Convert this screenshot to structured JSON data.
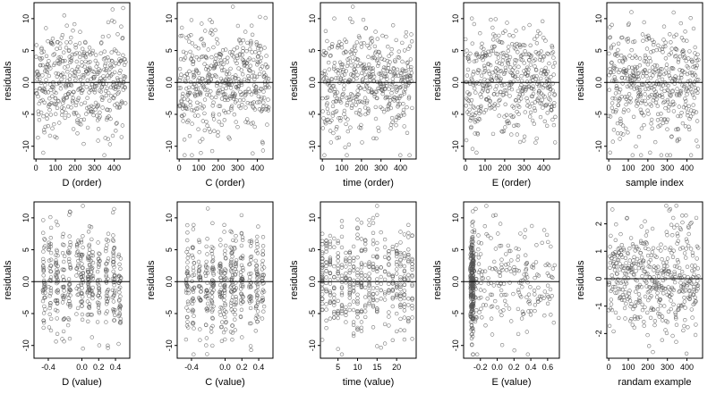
{
  "chart_data": [
    {
      "type": "scatter",
      "xlabel": "D (order)",
      "ylabel": "residuals",
      "xlim": [
        -10,
        480
      ],
      "ylim": [
        -12,
        12.5
      ],
      "xticks": [
        0,
        100,
        200,
        300,
        400
      ],
      "xtick_labels": [
        "0",
        "100",
        "200",
        "300",
        "400"
      ],
      "yticks": [
        -10,
        -5,
        0,
        5,
        10
      ],
      "ytick_labels": [
        "-10",
        "-5",
        "0.0",
        "5",
        "10"
      ],
      "reference_line": 0,
      "x_kind": "order",
      "n_points": 460
    },
    {
      "type": "scatter",
      "xlabel": "C (order)",
      "ylabel": "residuals",
      "xlim": [
        -10,
        480
      ],
      "ylim": [
        -12,
        12.5
      ],
      "xticks": [
        0,
        100,
        200,
        300,
        400
      ],
      "xtick_labels": [
        "0",
        "100",
        "200",
        "300",
        "400"
      ],
      "yticks": [
        -10,
        -5,
        0,
        5,
        10
      ],
      "ytick_labels": [
        "-10",
        "-5",
        "0.0",
        "5",
        "10"
      ],
      "reference_line": 0,
      "x_kind": "order",
      "n_points": 460
    },
    {
      "type": "scatter",
      "xlabel": "time (order)",
      "ylabel": "residuals",
      "xlim": [
        -10,
        480
      ],
      "ylim": [
        -12,
        12.5
      ],
      "xticks": [
        0,
        100,
        200,
        300,
        400
      ],
      "xtick_labels": [
        "0",
        "100",
        "200",
        "300",
        "400"
      ],
      "yticks": [
        -10,
        -5,
        0,
        5,
        10
      ],
      "ytick_labels": [
        "-10",
        "-5",
        "0.0",
        "5",
        "10"
      ],
      "reference_line": 0,
      "x_kind": "order",
      "n_points": 460
    },
    {
      "type": "scatter",
      "xlabel": "E (order)",
      "ylabel": "residuals",
      "xlim": [
        -10,
        480
      ],
      "ylim": [
        -12,
        12.5
      ],
      "xticks": [
        0,
        100,
        200,
        300,
        400
      ],
      "xtick_labels": [
        "0",
        "100",
        "200",
        "300",
        "400"
      ],
      "yticks": [
        -10,
        -5,
        0,
        5,
        10
      ],
      "ytick_labels": [
        "-10",
        "-5",
        "0.0",
        "5",
        "10"
      ],
      "reference_line": 0,
      "x_kind": "order",
      "n_points": 460
    },
    {
      "type": "scatter",
      "xlabel": "sample index",
      "ylabel": "residuals",
      "xlim": [
        -10,
        480
      ],
      "ylim": [
        -12,
        12.5
      ],
      "xticks": [
        0,
        100,
        200,
        300,
        400
      ],
      "xtick_labels": [
        "0",
        "100",
        "200",
        "300",
        "400"
      ],
      "yticks": [
        -10,
        -5,
        0,
        5,
        10
      ],
      "ytick_labels": [
        "-10",
        "-5",
        "0.0",
        "5",
        "10"
      ],
      "reference_line": 0,
      "x_kind": "order",
      "n_points": 460
    },
    {
      "type": "scatter",
      "xlabel": "D (value)",
      "ylabel": "residuals",
      "xlim": [
        -0.57,
        0.57
      ],
      "ylim": [
        -12,
        12.5
      ],
      "xticks": [
        -0.4,
        0.0,
        0.2,
        0.4
      ],
      "xtick_labels": [
        "-0.4",
        "0.0",
        "0.2",
        "0.4"
      ],
      "yticks": [
        -10,
        -5,
        0,
        5,
        10
      ],
      "ytick_labels": [
        "-10",
        "-5",
        "0.0",
        "5",
        "10"
      ],
      "reference_line": 0,
      "x_kind": "value_clustered",
      "x_range": [
        -0.5,
        0.5
      ],
      "n_points": 460
    },
    {
      "type": "scatter",
      "xlabel": "C (value)",
      "ylabel": "residuals",
      "xlim": [
        -0.57,
        0.57
      ],
      "ylim": [
        -12,
        12.5
      ],
      "xticks": [
        -0.4,
        0.0,
        0.2,
        0.4
      ],
      "xtick_labels": [
        "-0.4",
        "0.0",
        "0.2",
        "0.4"
      ],
      "yticks": [
        -10,
        -5,
        0,
        5,
        10
      ],
      "ytick_labels": [
        "-10",
        "-5",
        "0.0",
        "5",
        "10"
      ],
      "reference_line": 0,
      "x_kind": "value_clustered",
      "x_range": [
        -0.5,
        0.5
      ],
      "n_points": 460
    },
    {
      "type": "scatter",
      "xlabel": "time (value)",
      "ylabel": "residuals",
      "xlim": [
        0.5,
        25
      ],
      "ylim": [
        -12,
        12.5
      ],
      "xticks": [
        5,
        10,
        15,
        20
      ],
      "xtick_labels": [
        "5",
        "10",
        "15",
        "20"
      ],
      "yticks": [
        -10,
        -5,
        0,
        5,
        10
      ],
      "ytick_labels": [
        "-10",
        "-5",
        "0.0",
        "5",
        "10"
      ],
      "reference_line": 0,
      "x_kind": "value_integer",
      "x_range": [
        1,
        24
      ],
      "n_points": 460
    },
    {
      "type": "scatter",
      "xlabel": "E (value)",
      "ylabel": "residuals",
      "xlim": [
        -0.4,
        0.74
      ],
      "ylim": [
        -12,
        12.5
      ],
      "xticks": [
        -0.2,
        0.0,
        0.2,
        0.4,
        0.6
      ],
      "xtick_labels": [
        "-0.2",
        "0.0",
        "0.2",
        "0.4",
        "0.6"
      ],
      "yticks": [
        -10,
        -5,
        0,
        5,
        10
      ],
      "ytick_labels": [
        "-10",
        "-5",
        "0.0",
        "5",
        "10"
      ],
      "reference_line": 0,
      "x_kind": "value_skewed",
      "x_range": [
        -0.33,
        0.7
      ],
      "n_points": 460
    },
    {
      "type": "scatter",
      "xlabel": "randam example",
      "ylabel": "residuals",
      "xlim": [
        -10,
        480
      ],
      "ylim": [
        -2.9,
        2.8
      ],
      "xticks": [
        0,
        100,
        200,
        300,
        400
      ],
      "xtick_labels": [
        "0",
        "100",
        "200",
        "300",
        "400"
      ],
      "yticks": [
        -2,
        -1,
        0,
        1,
        2
      ],
      "ytick_labels": [
        "-2",
        "-1",
        "0",
        "1",
        "2"
      ],
      "reference_line": 0,
      "x_kind": "order",
      "n_points": 460
    }
  ]
}
